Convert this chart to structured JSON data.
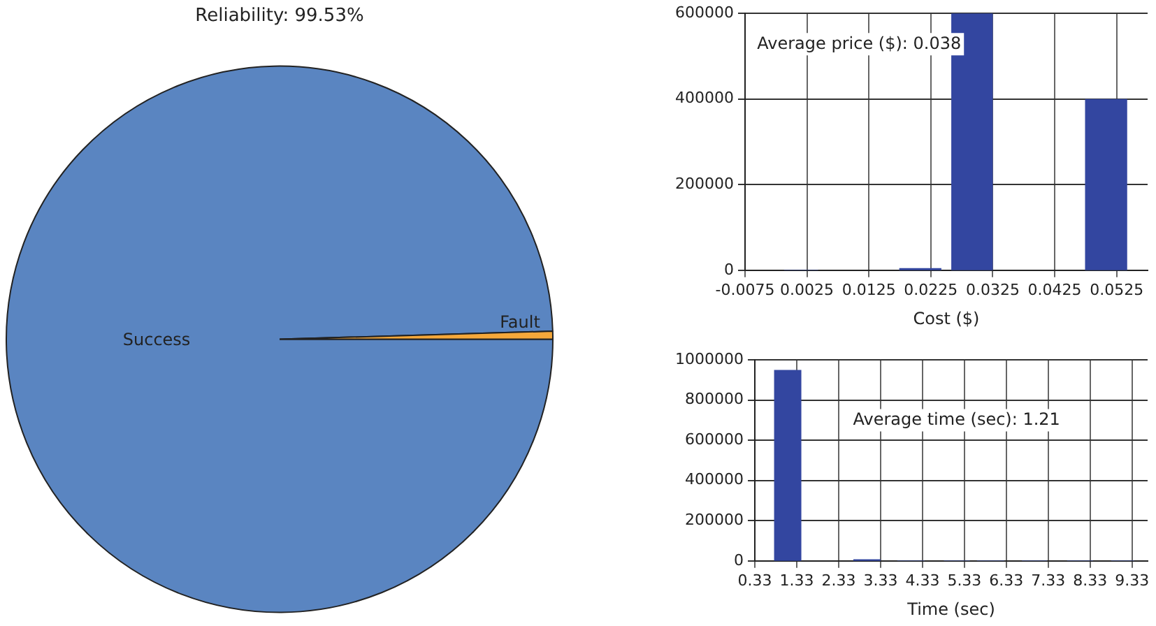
{
  "chart_data": [
    {
      "type": "pie",
      "title": "Reliability: 99.53%",
      "categories": [
        "Success",
        "Fault"
      ],
      "values": [
        99.53,
        0.47
      ],
      "colors": [
        "#5a85c1",
        "#f5a83a"
      ],
      "legend": false
    },
    {
      "type": "histogram",
      "xlabel": "Cost ($)",
      "bins": [
        -0.0012,
        0.0043,
        0.0174,
        0.0242,
        0.0258,
        0.0325,
        0.0474,
        0.0542
      ],
      "values": [
        1000,
        0,
        5000,
        0,
        600000,
        0,
        400000
      ],
      "color": "#3346a0",
      "xlim": [
        -0.0075,
        0.0575
      ],
      "xticks": [
        -0.0075,
        0.0025,
        0.0125,
        0.0225,
        0.0325,
        0.0425,
        0.0525
      ],
      "ylim": [
        0,
        600000
      ],
      "yticks": [
        0,
        200000,
        400000,
        600000
      ],
      "grid": true,
      "legend": false,
      "annotations": [
        "Average price ($): 0.038"
      ]
    },
    {
      "type": "histogram",
      "xlabel": "Time (sec)",
      "bins": [
        0.79,
        1.44,
        2.68,
        3.33,
        3.73,
        4.38,
        4.84,
        5.46,
        5.63,
        6.28,
        6.7,
        7.3,
        7.78,
        8.4,
        8.83,
        9.38
      ],
      "values": [
        950000,
        0,
        8000,
        0,
        2000,
        0,
        2000,
        0,
        2000,
        0,
        2000,
        0,
        2000,
        0,
        2000
      ],
      "color": "#3346a0",
      "xlim": [
        0.33,
        9.7
      ],
      "xticks": [
        0.33,
        1.33,
        2.33,
        3.33,
        4.33,
        5.33,
        6.33,
        7.33,
        8.33,
        9.33
      ],
      "ylim": [
        0,
        1000000
      ],
      "yticks": [
        0,
        200000,
        400000,
        600000,
        800000,
        1000000
      ],
      "grid": true,
      "legend": false,
      "annotations": [
        "Average time (sec): 1.21"
      ]
    }
  ]
}
